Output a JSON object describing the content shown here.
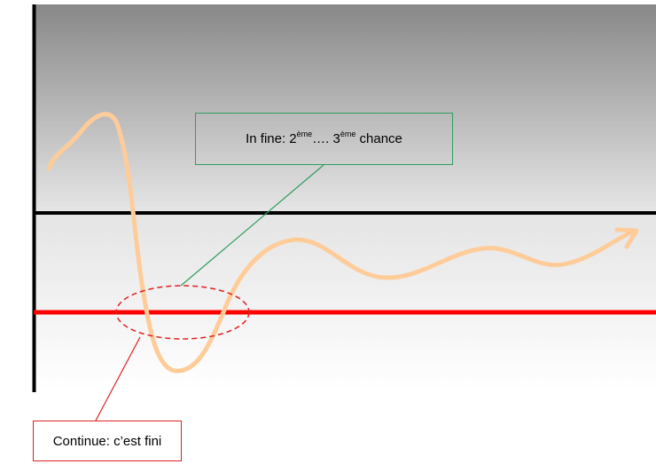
{
  "callouts": {
    "top": {
      "prefix": "In fine: 2",
      "sup1": "ème",
      "middle": "…. 3",
      "sup2": "ème",
      "suffix": " chance",
      "border_color": "#2e9e5e"
    },
    "bottom": {
      "text": "Continue: c’est fini",
      "border_color": "#e02020"
    }
  },
  "colors": {
    "upper_band_top": "#888888",
    "upper_band_bottom": "#e6e6e6",
    "lower_band_top": "#e4e4e4",
    "lower_band_bottom": "#ffffff",
    "curve": "#ffcc99",
    "threshold_black": "#000000",
    "threshold_red": "#ff0000",
    "axis": "#000000"
  }
}
